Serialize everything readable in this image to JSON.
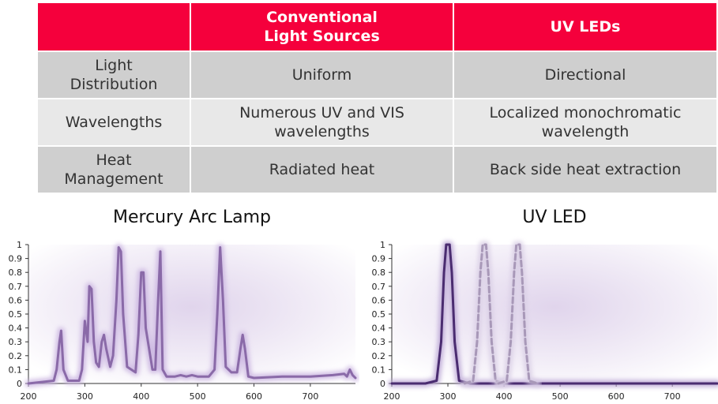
{
  "table": {
    "headers": [
      "",
      "Conventional\nLight Sources",
      "UV LEDs"
    ],
    "rows": [
      {
        "label": "Light\nDistribution",
        "conventional": "Uniform",
        "uvled": "Directional"
      },
      {
        "label": "Wavelengths",
        "conventional": "Numerous UV and VIS\nwavelengths",
        "uvled": "Localized monochromatic\nwavelength"
      },
      {
        "label": "Heat\nManagement",
        "conventional": "Radiated heat",
        "uvled": "Back side heat extraction"
      }
    ]
  },
  "colors": {
    "header_bg": "#f5003c",
    "row_dark": "#cfcfcf",
    "row_light": "#e8e8e8",
    "line": "#8a6aa8",
    "glow": "#c9b3e0",
    "led_line": "#4a2c70",
    "led_dashed": "#a898b8"
  },
  "chart_data": [
    {
      "type": "line",
      "title": "Mercury Arc Lamp",
      "xlim": [
        200,
        780
      ],
      "ylim": [
        0,
        1
      ],
      "xticks": [
        200,
        300,
        400,
        500,
        600,
        700
      ],
      "yticks": [
        0,
        0.1,
        0.2,
        0.3,
        0.4,
        0.5,
        0.6,
        0.7,
        0.8,
        0.9,
        1
      ],
      "series": [
        {
          "x": [
            200,
            245,
            250,
            255,
            258,
            262,
            270,
            290,
            295,
            300,
            305,
            308,
            312,
            316,
            320,
            325,
            330,
            334,
            338,
            345,
            350,
            356,
            360,
            364,
            368,
            375,
            390,
            395,
            400,
            404,
            408,
            420,
            425,
            430,
            434,
            438,
            445,
            460,
            470,
            480,
            490,
            500,
            520,
            530,
            535,
            540,
            545,
            550,
            560,
            570,
            576,
            580,
            584,
            590,
            600,
            650,
            700,
            740,
            760,
            765,
            770,
            775,
            780
          ],
          "y": [
            0,
            0.02,
            0.1,
            0.3,
            0.38,
            0.1,
            0.02,
            0.02,
            0.1,
            0.45,
            0.3,
            0.7,
            0.68,
            0.3,
            0.15,
            0.12,
            0.3,
            0.35,
            0.25,
            0.12,
            0.2,
            0.6,
            0.98,
            0.95,
            0.5,
            0.12,
            0.08,
            0.35,
            0.8,
            0.8,
            0.4,
            0.1,
            0.1,
            0.6,
            0.95,
            0.1,
            0.05,
            0.05,
            0.06,
            0.05,
            0.06,
            0.05,
            0.05,
            0.1,
            0.5,
            0.98,
            0.6,
            0.12,
            0.08,
            0.08,
            0.25,
            0.35,
            0.25,
            0.05,
            0.04,
            0.05,
            0.05,
            0.06,
            0.07,
            0.05,
            0.1,
            0.06,
            0.04
          ]
        }
      ]
    },
    {
      "type": "line",
      "title": "UV LED",
      "xlim": [
        200,
        780
      ],
      "ylim": [
        0,
        1
      ],
      "xticks": [
        200,
        300,
        400,
        500,
        600,
        700
      ],
      "yticks": [
        0,
        0.1,
        0.2,
        0.3,
        0.4,
        0.5,
        0.6,
        0.7,
        0.8,
        0.9,
        1
      ],
      "series": [
        {
          "x": [
            200,
            260,
            280,
            288,
            293,
            297,
            300,
            303,
            307,
            312,
            320,
            340,
            780
          ],
          "y": [
            0,
            0,
            0.02,
            0.3,
            0.8,
            1,
            1,
            1,
            0.8,
            0.3,
            0.02,
            0,
            0
          ],
          "style": "solid"
        },
        {
          "x": [
            330,
            345,
            352,
            358,
            362,
            365,
            368,
            372,
            378,
            385,
            400
          ],
          "y": [
            0,
            0.02,
            0.3,
            0.8,
            1,
            1,
            1,
            0.8,
            0.3,
            0.02,
            0
          ],
          "style": "dashed"
        },
        {
          "x": [
            390,
            405,
            412,
            418,
            422,
            425,
            428,
            432,
            438,
            445,
            460
          ],
          "y": [
            0,
            0.02,
            0.3,
            0.8,
            1,
            1,
            1,
            0.8,
            0.3,
            0.02,
            0
          ],
          "style": "dashed"
        }
      ]
    }
  ]
}
